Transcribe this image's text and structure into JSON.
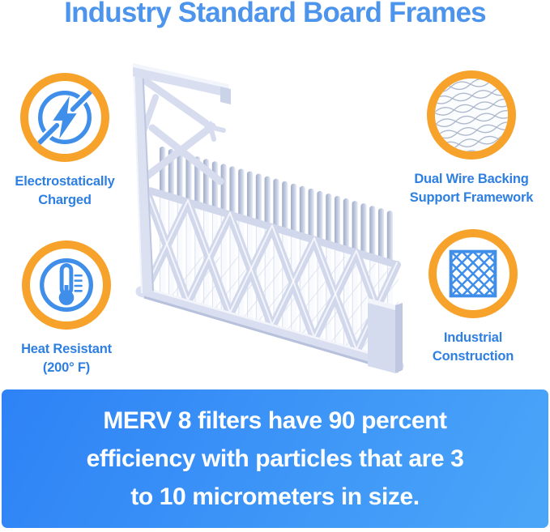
{
  "title": {
    "text": "Industry Standard Board Frames"
  },
  "features": [
    {
      "name": "electrostatically-charged",
      "icon": "lightning-bolt-icon",
      "label_lines": [
        "Electrostatically",
        "Charged"
      ]
    },
    {
      "name": "dual-wire-backing",
      "icon": "wire-mesh-icon",
      "label_lines": [
        "Dual Wire Backing",
        "Support Framework"
      ]
    },
    {
      "name": "heat-resistant",
      "icon": "thermometer-icon",
      "label_lines": [
        "Heat Resistant",
        "(200° F)"
      ]
    },
    {
      "name": "industrial-construction",
      "icon": "diamond-lattice-icon",
      "label_lines": [
        "Industrial",
        "Construction"
      ]
    }
  ],
  "banner": {
    "lines": [
      "MERV 8 filters have 90 percent",
      "efficiency with particles that are 3",
      "to 10 micrometers in size."
    ]
  },
  "illustration": {
    "name": "pleated-air-filter-cutaway"
  },
  "colors": {
    "page_bg": "#FFFFFF",
    "title_blue": "#4D94EC",
    "label_blue": "#2E7FE2",
    "accent_orange": "#F6A22B",
    "icon_blue": "#3F8EE9",
    "banner_from": "#2E82F6",
    "banner_to": "#4BA6F8",
    "banner_text": "#FFFFFF",
    "filter_frame": "#D9DEF0",
    "filter_pleat": "#B3BDD8"
  }
}
